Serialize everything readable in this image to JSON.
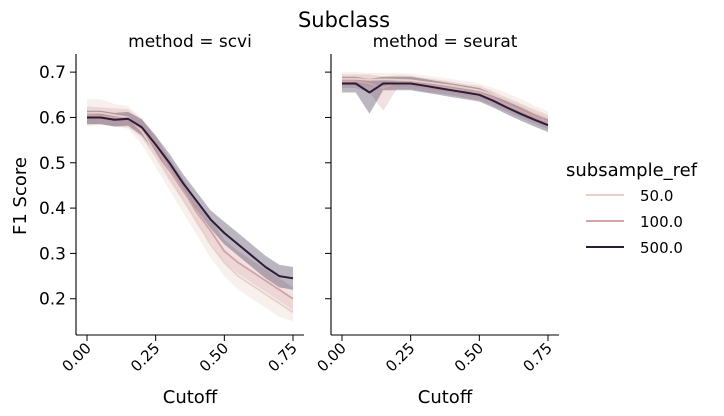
{
  "figure": {
    "title": "Subclass",
    "legend_title": "subsample_ref"
  },
  "colors": {
    "50.0": "#e8cfc8",
    "100.0": "#d3a3a6",
    "500.0": "#2b1c3a"
  },
  "chart_data": [
    {
      "type": "line",
      "panel_title": "method = scvi",
      "xlabel": "Cutoff",
      "ylabel": "F1 Score",
      "xlim": [
        -0.04,
        0.79
      ],
      "ylim": [
        0.12,
        0.74
      ],
      "xticks": [
        "0.00",
        "0.25",
        "0.50",
        "0.75"
      ],
      "xtick_values": [
        0.0,
        0.25,
        0.5,
        0.75
      ],
      "yticks": [
        "0.2",
        "0.3",
        "0.4",
        "0.5",
        "0.6",
        "0.7"
      ],
      "ytick_values": [
        0.2,
        0.3,
        0.4,
        0.5,
        0.6,
        0.7
      ],
      "grid": false,
      "x": [
        0.0,
        0.05,
        0.1,
        0.15,
        0.2,
        0.25,
        0.3,
        0.35,
        0.4,
        0.45,
        0.5,
        0.55,
        0.6,
        0.65,
        0.7,
        0.75
      ],
      "series": [
        {
          "name": "50.0",
          "values": [
            0.61,
            0.61,
            0.605,
            0.6,
            0.57,
            0.52,
            0.47,
            0.42,
            0.37,
            0.32,
            0.28,
            0.25,
            0.23,
            0.21,
            0.19,
            0.17
          ],
          "lower": [
            0.58,
            0.585,
            0.58,
            0.575,
            0.54,
            0.49,
            0.44,
            0.39,
            0.34,
            0.29,
            0.25,
            0.22,
            0.2,
            0.18,
            0.16,
            0.15
          ],
          "upper": [
            0.64,
            0.64,
            0.63,
            0.625,
            0.6,
            0.55,
            0.5,
            0.45,
            0.4,
            0.35,
            0.31,
            0.28,
            0.26,
            0.24,
            0.22,
            0.2
          ]
        },
        {
          "name": "100.0",
          "values": [
            0.605,
            0.603,
            0.6,
            0.598,
            0.575,
            0.535,
            0.485,
            0.44,
            0.39,
            0.35,
            0.305,
            0.28,
            0.26,
            0.24,
            0.22,
            0.2
          ],
          "lower": [
            0.585,
            0.585,
            0.58,
            0.578,
            0.555,
            0.51,
            0.46,
            0.415,
            0.365,
            0.325,
            0.28,
            0.255,
            0.235,
            0.215,
            0.195,
            0.175
          ],
          "upper": [
            0.625,
            0.622,
            0.62,
            0.618,
            0.595,
            0.56,
            0.51,
            0.465,
            0.415,
            0.375,
            0.33,
            0.305,
            0.285,
            0.265,
            0.245,
            0.225
          ]
        },
        {
          "name": "500.0",
          "values": [
            0.6,
            0.6,
            0.595,
            0.597,
            0.578,
            0.54,
            0.5,
            0.455,
            0.415,
            0.375,
            0.345,
            0.32,
            0.295,
            0.27,
            0.25,
            0.245
          ],
          "lower": [
            0.585,
            0.585,
            0.58,
            0.582,
            0.56,
            0.52,
            0.48,
            0.435,
            0.395,
            0.355,
            0.32,
            0.295,
            0.27,
            0.245,
            0.225,
            0.22
          ],
          "upper": [
            0.615,
            0.615,
            0.61,
            0.612,
            0.596,
            0.56,
            0.52,
            0.475,
            0.435,
            0.395,
            0.37,
            0.345,
            0.32,
            0.295,
            0.275,
            0.27
          ]
        }
      ]
    },
    {
      "type": "line",
      "panel_title": "method = seurat",
      "xlabel": "Cutoff",
      "ylabel": "",
      "xlim": [
        -0.04,
        0.79
      ],
      "ylim": [
        0.12,
        0.74
      ],
      "xticks": [
        "0.00",
        "0.25",
        "0.50",
        "0.75"
      ],
      "xtick_values": [
        0.0,
        0.25,
        0.5,
        0.75
      ],
      "yticks": [
        "",
        "",
        "",
        "",
        "",
        ""
      ],
      "ytick_values": [
        0.2,
        0.3,
        0.4,
        0.5,
        0.6,
        0.7
      ],
      "grid": false,
      "x": [
        0.0,
        0.05,
        0.1,
        0.15,
        0.2,
        0.25,
        0.3,
        0.35,
        0.4,
        0.45,
        0.5,
        0.55,
        0.6,
        0.65,
        0.7,
        0.75
      ],
      "series": [
        {
          "name": "50.0",
          "values": [
            0.685,
            0.685,
            0.683,
            0.684,
            0.683,
            0.682,
            0.678,
            0.674,
            0.67,
            0.665,
            0.66,
            0.65,
            0.638,
            0.625,
            0.61,
            0.598
          ],
          "lower": [
            0.67,
            0.67,
            0.668,
            0.67,
            0.668,
            0.667,
            0.663,
            0.659,
            0.655,
            0.65,
            0.645,
            0.635,
            0.622,
            0.609,
            0.594,
            0.582
          ],
          "upper": [
            0.7,
            0.7,
            0.698,
            0.698,
            0.698,
            0.697,
            0.693,
            0.689,
            0.685,
            0.68,
            0.675,
            0.665,
            0.654,
            0.641,
            0.626,
            0.614
          ]
        },
        {
          "name": "100.0",
          "values": [
            0.68,
            0.68,
            0.675,
            0.665,
            0.678,
            0.677,
            0.672,
            0.668,
            0.664,
            0.658,
            0.654,
            0.642,
            0.628,
            0.615,
            0.602,
            0.59
          ],
          "lower": [
            0.665,
            0.665,
            0.655,
            0.615,
            0.663,
            0.662,
            0.657,
            0.653,
            0.649,
            0.643,
            0.638,
            0.626,
            0.612,
            0.599,
            0.586,
            0.574
          ],
          "upper": [
            0.695,
            0.695,
            0.695,
            0.69,
            0.693,
            0.692,
            0.687,
            0.683,
            0.679,
            0.673,
            0.67,
            0.658,
            0.644,
            0.631,
            0.618,
            0.606
          ]
        },
        {
          "name": "500.0",
          "values": [
            0.675,
            0.675,
            0.655,
            0.675,
            0.675,
            0.675,
            0.67,
            0.665,
            0.66,
            0.655,
            0.65,
            0.637,
            0.622,
            0.608,
            0.595,
            0.583
          ],
          "lower": [
            0.655,
            0.655,
            0.608,
            0.66,
            0.66,
            0.66,
            0.655,
            0.65,
            0.645,
            0.64,
            0.635,
            0.622,
            0.607,
            0.593,
            0.58,
            0.568
          ],
          "upper": [
            0.69,
            0.69,
            0.685,
            0.69,
            0.69,
            0.69,
            0.685,
            0.68,
            0.675,
            0.67,
            0.665,
            0.652,
            0.637,
            0.623,
            0.61,
            0.598
          ]
        }
      ]
    }
  ]
}
